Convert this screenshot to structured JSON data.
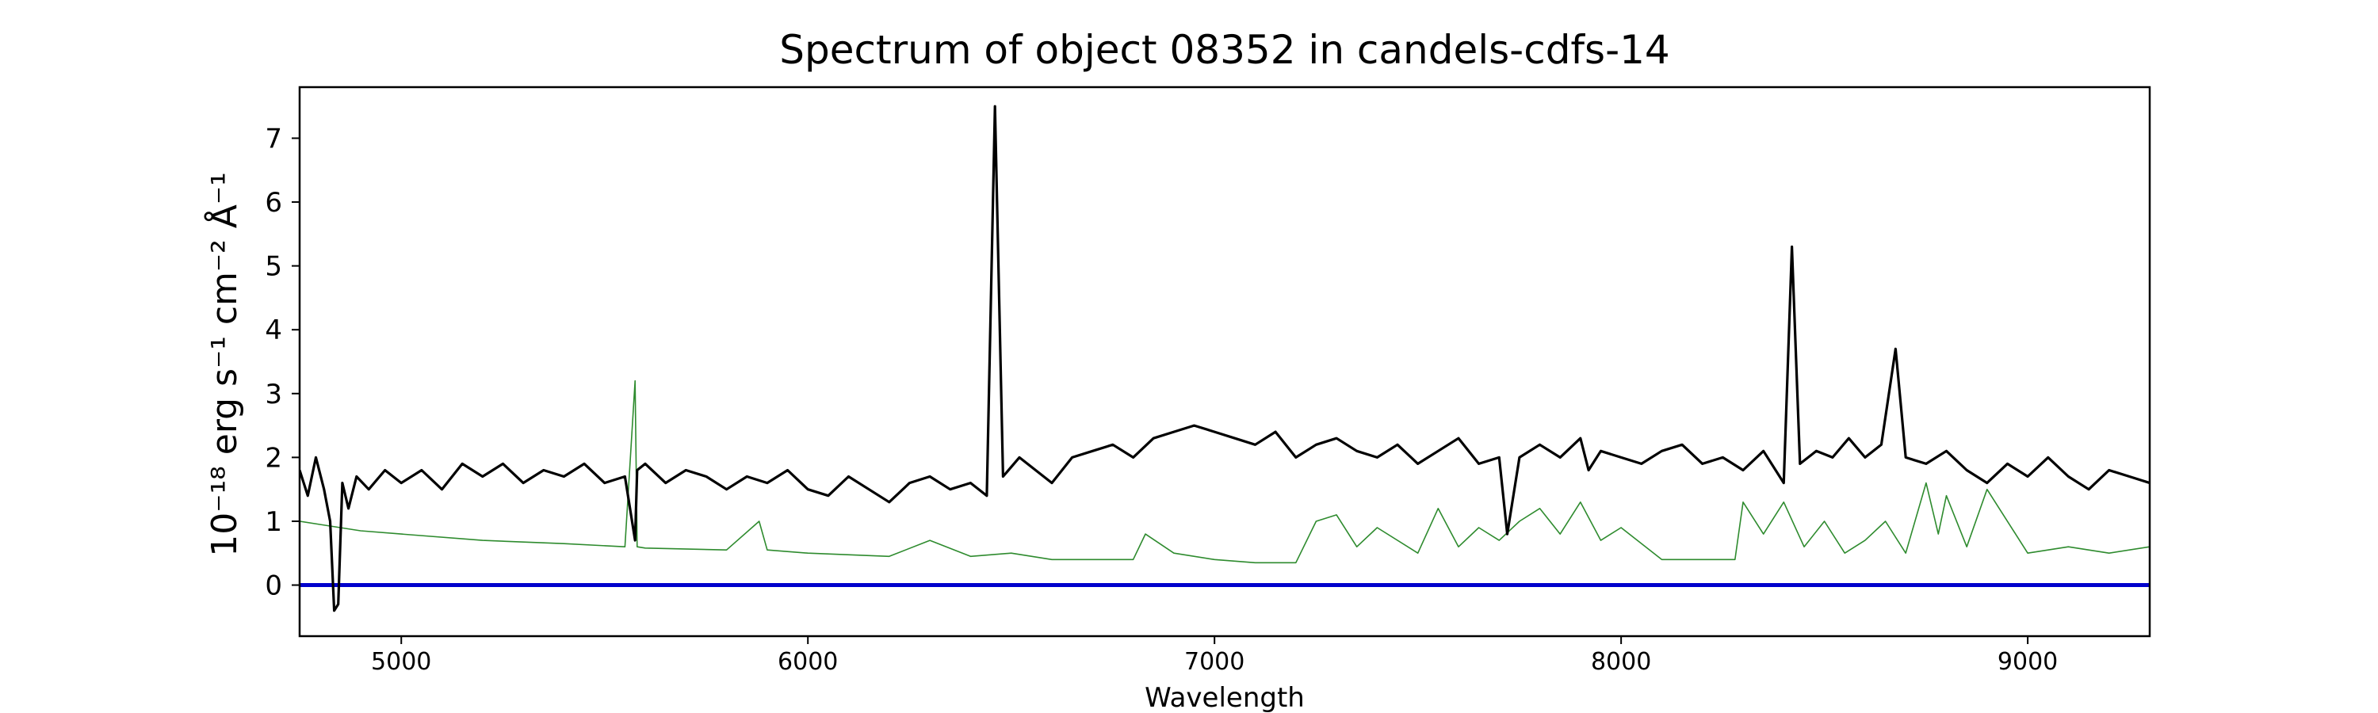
{
  "chart_data": {
    "type": "line",
    "title": "Spectrum of object 08352 in candels-cdfs-14",
    "xlabel": "Wavelength",
    "ylabel": "10⁻¹⁸ erg s⁻¹ cm⁻² Å⁻¹",
    "xlim": [
      4750,
      9300
    ],
    "ylim": [
      -0.8,
      7.8
    ],
    "x_ticks": [
      5000,
      6000,
      7000,
      8000,
      9000
    ],
    "y_ticks": [
      0,
      1,
      2,
      3,
      4,
      5,
      6,
      7
    ],
    "grid": false,
    "colors": {
      "flux": "#000000",
      "error": "#2e8b2e",
      "zero": "#0000cc"
    },
    "series": [
      {
        "role": "flux",
        "x": [
          4750,
          4770,
          4790,
          4810,
          4825,
          4835,
          4845,
          4855,
          4870,
          4890,
          4920,
          4960,
          5000,
          5050,
          5100,
          5150,
          5200,
          5250,
          5300,
          5350,
          5400,
          5450,
          5500,
          5550,
          5575,
          5580,
          5600,
          5650,
          5700,
          5750,
          5800,
          5850,
          5900,
          5950,
          6000,
          6050,
          6100,
          6150,
          6200,
          6250,
          6300,
          6350,
          6400,
          6440,
          6460,
          6480,
          6520,
          6560,
          6600,
          6650,
          6700,
          6750,
          6800,
          6850,
          6900,
          6950,
          7000,
          7050,
          7100,
          7150,
          7200,
          7250,
          7300,
          7350,
          7400,
          7450,
          7500,
          7550,
          7600,
          7650,
          7700,
          7720,
          7750,
          7800,
          7850,
          7900,
          7920,
          7950,
          8000,
          8050,
          8100,
          8150,
          8200,
          8250,
          8300,
          8350,
          8400,
          8420,
          8440,
          8480,
          8520,
          8560,
          8600,
          8640,
          8675,
          8700,
          8750,
          8800,
          8850,
          8900,
          8950,
          9000,
          9050,
          9100,
          9150,
          9200,
          9250,
          9300
        ],
        "y": [
          1.8,
          1.4,
          2.0,
          1.5,
          1.0,
          -0.4,
          -0.3,
          1.6,
          1.2,
          1.7,
          1.5,
          1.8,
          1.6,
          1.8,
          1.5,
          1.9,
          1.7,
          1.9,
          1.6,
          1.8,
          1.7,
          1.9,
          1.6,
          1.7,
          0.7,
          1.8,
          1.9,
          1.6,
          1.8,
          1.7,
          1.5,
          1.7,
          1.6,
          1.8,
          1.5,
          1.4,
          1.7,
          1.5,
          1.3,
          1.6,
          1.7,
          1.5,
          1.6,
          1.4,
          7.5,
          1.7,
          2.0,
          1.8,
          1.6,
          2.0,
          2.1,
          2.2,
          2.0,
          2.3,
          2.4,
          2.5,
          2.4,
          2.3,
          2.2,
          2.4,
          2.0,
          2.2,
          2.3,
          2.1,
          2.0,
          2.2,
          1.9,
          2.1,
          2.3,
          1.9,
          2.0,
          0.8,
          2.0,
          2.2,
          2.0,
          2.3,
          1.8,
          2.1,
          2.0,
          1.9,
          2.1,
          2.2,
          1.9,
          2.0,
          1.8,
          2.1,
          1.6,
          5.3,
          1.9,
          2.1,
          2.0,
          2.3,
          2.0,
          2.2,
          3.7,
          2.0,
          1.9,
          2.1,
          1.8,
          1.6,
          1.9,
          1.7,
          2.0,
          1.7,
          1.5,
          1.8,
          1.7,
          1.6
        ]
      },
      {
        "role": "error",
        "x": [
          4750,
          4800,
          4850,
          4900,
          5000,
          5200,
          5400,
          5550,
          5575,
          5580,
          5600,
          5800,
          5880,
          5900,
          6000,
          6200,
          6300,
          6400,
          6500,
          6600,
          6800,
          6830,
          6900,
          7000,
          7100,
          7200,
          7250,
          7300,
          7350,
          7400,
          7500,
          7550,
          7600,
          7650,
          7700,
          7750,
          7800,
          7850,
          7900,
          7950,
          8000,
          8100,
          8200,
          8280,
          8300,
          8350,
          8400,
          8450,
          8500,
          8550,
          8600,
          8650,
          8700,
          8750,
          8780,
          8800,
          8850,
          8900,
          9000,
          9100,
          9200,
          9300
        ],
        "y": [
          1.0,
          0.95,
          0.9,
          0.85,
          0.8,
          0.7,
          0.65,
          0.6,
          3.2,
          0.6,
          0.58,
          0.55,
          1.0,
          0.55,
          0.5,
          0.45,
          0.7,
          0.45,
          0.5,
          0.4,
          0.4,
          0.8,
          0.5,
          0.4,
          0.35,
          0.35,
          1.0,
          1.1,
          0.6,
          0.9,
          0.5,
          1.2,
          0.6,
          0.9,
          0.7,
          1.0,
          1.2,
          0.8,
          1.3,
          0.7,
          0.9,
          0.4,
          0.4,
          0.4,
          1.3,
          0.8,
          1.3,
          0.6,
          1.0,
          0.5,
          0.7,
          1.0,
          0.5,
          1.6,
          0.8,
          1.4,
          0.6,
          1.5,
          0.5,
          0.6,
          0.5,
          0.6
        ]
      },
      {
        "role": "zero",
        "x": [
          4750,
          9300
        ],
        "y": [
          0,
          0
        ]
      }
    ]
  }
}
